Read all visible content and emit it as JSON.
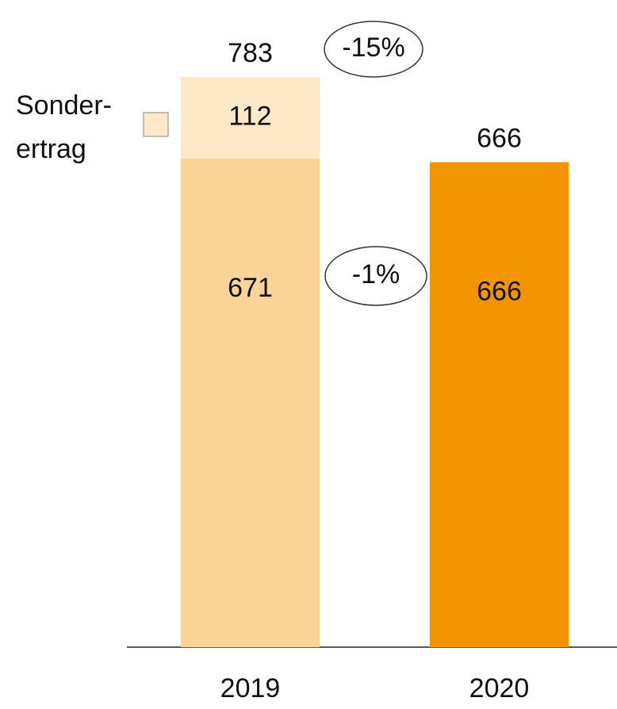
{
  "chart_data": {
    "type": "stacked-bar",
    "categories": [
      "2019",
      "2020"
    ],
    "series": [
      {
        "colors": [
          "#fdd497",
          "#f29400"
        ],
        "values": [
          671,
          666
        ]
      },
      {
        "name": "Sonder-\nertrag",
        "color": "#fde8c8",
        "values": [
          112,
          null
        ]
      }
    ],
    "totals": [
      783,
      666
    ],
    "annotations": [
      "-15%",
      "-1%"
    ]
  }
}
